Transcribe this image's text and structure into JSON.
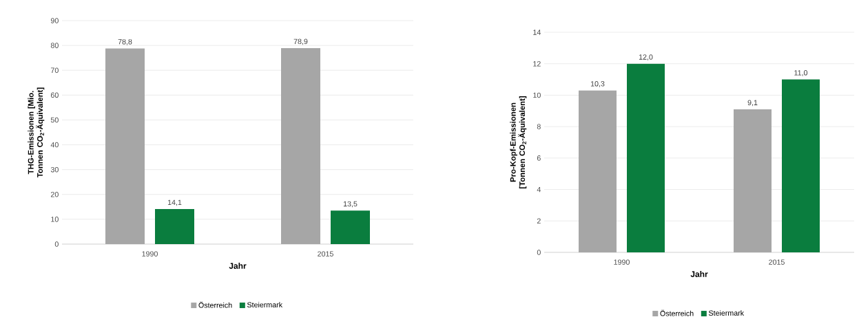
{
  "chart_data": [
    {
      "type": "bar",
      "xlabel": "Jahr",
      "ylabel": "THG-Emissionen [Mio. Tonnen CO$_{2}$-Äquivalent]",
      "categories": [
        "1990",
        "2015"
      ],
      "series": [
        {
          "name": "Österreich",
          "color": "#a6a6a6",
          "values": [
            78.8,
            78.9
          ],
          "value_labels": [
            "78,8",
            "78,9"
          ]
        },
        {
          "name": "Steiermark",
          "color": "#0a7d3e",
          "values": [
            14.1,
            13.5
          ],
          "value_labels": [
            "14,1",
            "13,5"
          ]
        }
      ],
      "ylim": [
        0,
        90
      ],
      "yticks": [
        0,
        10,
        20,
        30,
        40,
        50,
        60,
        70,
        80,
        90
      ],
      "grid": "y",
      "legend": "bottom"
    },
    {
      "type": "bar",
      "xlabel": "Jahr",
      "ylabel": "Pro-Kopf-Emissionen [Tonnen CO$_{2}$-Äquivalent]",
      "categories": [
        "1990",
        "2015"
      ],
      "series": [
        {
          "name": "Österreich",
          "color": "#a6a6a6",
          "values": [
            10.3,
            9.1
          ],
          "value_labels": [
            "10,3",
            "9,1"
          ]
        },
        {
          "name": "Steiermark",
          "color": "#0a7d3e",
          "values": [
            12.0,
            11.0
          ],
          "value_labels": [
            "12,0",
            "11,0"
          ]
        }
      ],
      "ylim": [
        0,
        14
      ],
      "yticks": [
        0,
        2,
        4,
        6,
        8,
        10,
        12,
        14
      ],
      "grid": "y",
      "legend": "bottom"
    }
  ]
}
